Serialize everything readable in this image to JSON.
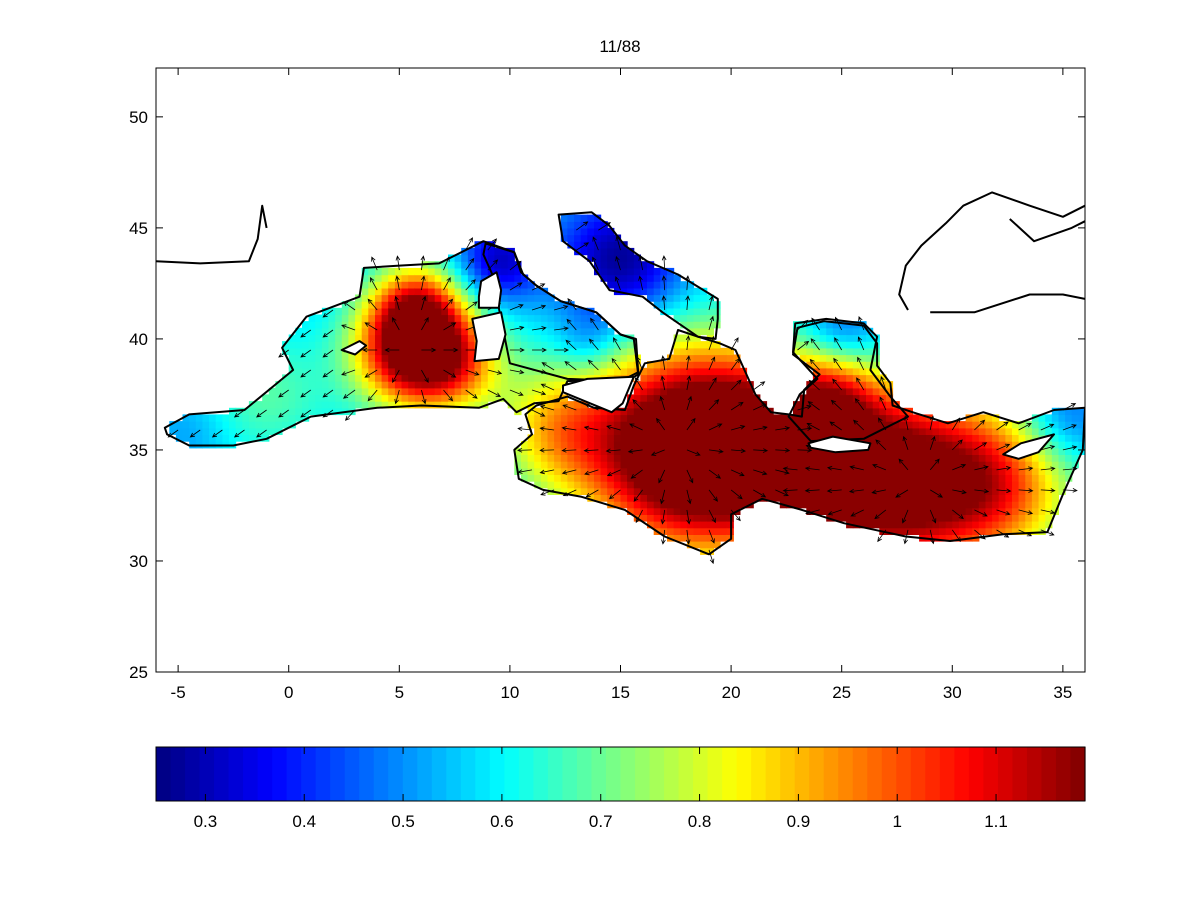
{
  "chart_data": {
    "type": "heatmap",
    "title": "11/88",
    "xlabel": "",
    "ylabel": "",
    "xlim": [
      -6,
      36
    ],
    "ylim": [
      25,
      52.2
    ],
    "xticks": [
      -5,
      0,
      5,
      10,
      15,
      20,
      25,
      30,
      35
    ],
    "yticks": [
      25,
      30,
      35,
      40,
      45,
      50
    ],
    "grid": false,
    "colormap": "jet",
    "colorbar": {
      "orientation": "horizontal",
      "position": "bottom",
      "range": [
        0.25,
        1.19
      ],
      "ticks": [
        0.3,
        0.4,
        0.5,
        0.6,
        0.7,
        0.8,
        0.9,
        1,
        1.1
      ],
      "tick_labels": [
        "0.3",
        "0.4",
        "0.5",
        "0.6",
        "0.7",
        "0.8",
        "0.9",
        "1",
        "1.1"
      ]
    },
    "field_maxima": [
      {
        "lon": 5.5,
        "lat": 39.5,
        "value": 1.17
      },
      {
        "lon": 18,
        "lat": 35,
        "value": 1.18
      },
      {
        "lon": 28,
        "lat": 33.5,
        "value": 1.12
      }
    ],
    "vectors": "arrow field over the sea (current direction)",
    "coastline_color": "#000000"
  }
}
